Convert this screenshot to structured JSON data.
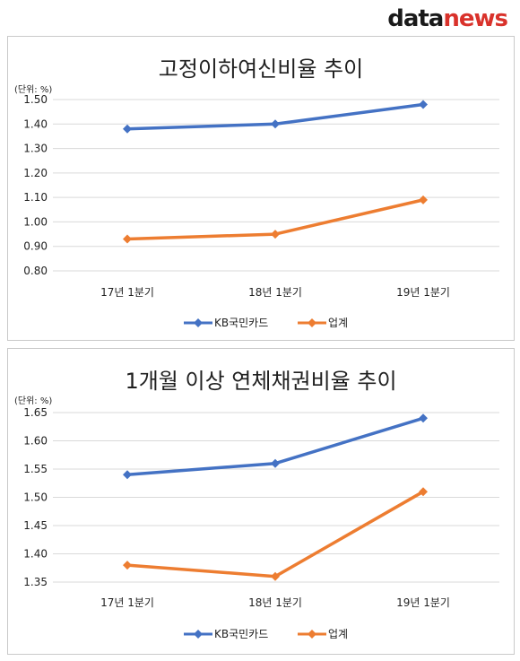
{
  "logo": {
    "text_main": "data",
    "text_accent": "news"
  },
  "colors": {
    "kb": "#4472c4",
    "industry": "#ed7d31"
  },
  "chart_data": [
    {
      "type": "line",
      "title": "고정이하여신비율 추이",
      "unit": "(단위: %)",
      "categories": [
        "17년 1분기",
        "18년 1분기",
        "19년 1분기"
      ],
      "ylim": [
        0.8,
        1.5
      ],
      "yticks": [
        "1.50",
        "1.40",
        "1.30",
        "1.20",
        "1.10",
        "1.00",
        "0.90",
        "0.80"
      ],
      "series": [
        {
          "name": "KB국민카드",
          "values": [
            1.38,
            1.4,
            1.48
          ]
        },
        {
          "name": "업계",
          "values": [
            0.93,
            0.95,
            1.09
          ]
        }
      ],
      "grid": true,
      "legend": "bottom"
    },
    {
      "type": "line",
      "title": "1개월 이상 연체채권비율 추이",
      "unit": "(단위: %)",
      "categories": [
        "17년 1분기",
        "18년 1분기",
        "19년 1분기"
      ],
      "ylim": [
        1.35,
        1.65
      ],
      "yticks": [
        "1.65",
        "1.60",
        "1.55",
        "1.50",
        "1.45",
        "1.40",
        "1.35"
      ],
      "series": [
        {
          "name": "KB국민카드",
          "values": [
            1.54,
            1.56,
            1.64
          ]
        },
        {
          "name": "업계",
          "values": [
            1.38,
            1.36,
            1.51
          ]
        }
      ],
      "grid": true,
      "legend": "bottom"
    }
  ]
}
